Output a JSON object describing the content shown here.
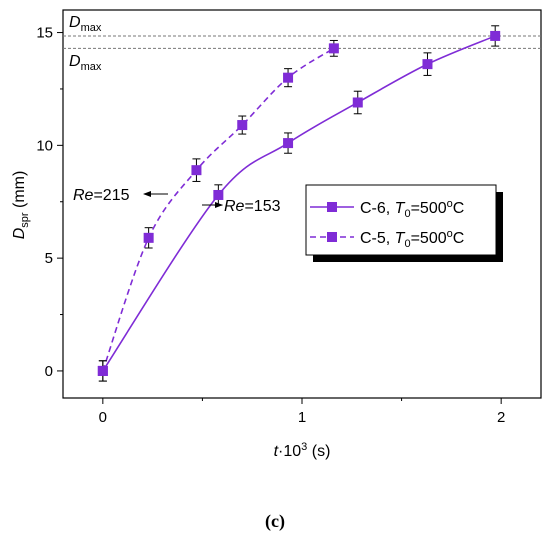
{
  "chart_data": {
    "type": "line",
    "xlabel": "t·10³ (s)",
    "ylabel": "D_spr (mm)",
    "xlim": [
      -0.2,
      2.2
    ],
    "ylim": [
      -1.2,
      16
    ],
    "xticks": [
      0,
      1,
      2
    ],
    "yticks": [
      0,
      5,
      10,
      15
    ],
    "grid": false,
    "legend_placement": "center-right",
    "series": [
      {
        "name": "C-6, T0=500°C",
        "style": "solid",
        "marker": "square",
        "color": "#7f2cd6",
        "x": [
          0,
          0.58,
          0.93,
          1.28,
          1.63,
          1.97
        ],
        "y": [
          0.0,
          7.8,
          10.1,
          11.9,
          13.6,
          14.85
        ],
        "err": [
          0.45,
          0.45,
          0.45,
          0.5,
          0.5,
          0.45
        ]
      },
      {
        "name": "C-5, T0=500°C",
        "style": "dashed",
        "marker": "square",
        "color": "#7f2cd6",
        "x": [
          0,
          0.23,
          0.47,
          0.7,
          0.93,
          1.16
        ],
        "y": [
          0.0,
          5.9,
          8.9,
          10.9,
          13.0,
          14.3
        ],
        "err": [
          0.45,
          0.45,
          0.5,
          0.4,
          0.4,
          0.35
        ]
      }
    ],
    "reference_lines": [
      {
        "y": 14.85,
        "label_main": "D",
        "label_sub": "max"
      },
      {
        "y": 14.3,
        "label_main": "D",
        "label_sub": "max"
      }
    ],
    "annotations": [
      {
        "italic": "Re",
        "text": "=215"
      },
      {
        "italic": "Re",
        "text": "=153"
      }
    ],
    "legend": [
      {
        "prefix": "C-6, ",
        "italic": "T",
        "sub": "0",
        "rest": "=500",
        "sup": "o",
        "unit": "C"
      },
      {
        "prefix": "C-5, ",
        "italic": "T",
        "sub": "0",
        "rest": "=500",
        "sup": "o",
        "unit": "C"
      }
    ],
    "panel_label": "(c)"
  }
}
